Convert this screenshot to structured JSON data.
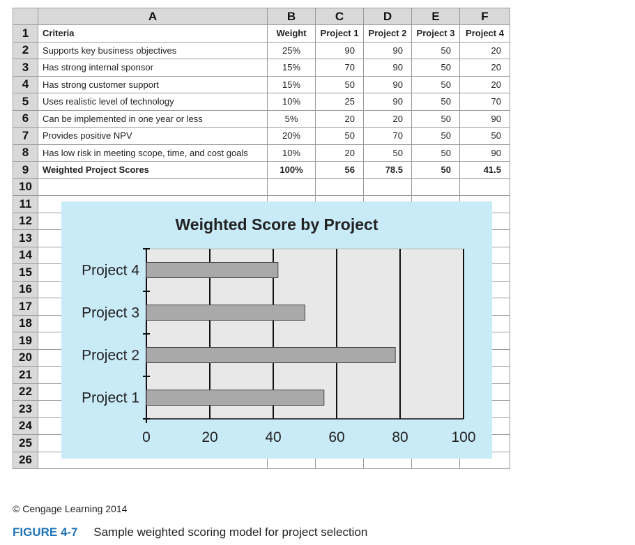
{
  "spreadsheet": {
    "column_headers": [
      "A",
      "B",
      "C",
      "D",
      "E",
      "F"
    ],
    "row_numbers": [
      "1",
      "2",
      "3",
      "4",
      "5",
      "6",
      "7",
      "8",
      "9",
      "10",
      "11",
      "12",
      "13",
      "14",
      "15",
      "16",
      "17",
      "18",
      "19",
      "20",
      "21",
      "22",
      "23",
      "24",
      "25",
      "26"
    ],
    "header_row": [
      "Criteria",
      "Weight",
      "Project 1",
      "Project 2",
      "Project 3",
      "Project 4"
    ],
    "rows": [
      [
        "Supports key business objectives",
        "25%",
        "90",
        "90",
        "50",
        "20"
      ],
      [
        "Has strong internal sponsor",
        "15%",
        "70",
        "90",
        "50",
        "20"
      ],
      [
        "Has strong customer support",
        "15%",
        "50",
        "90",
        "50",
        "20"
      ],
      [
        "Uses realistic level of technology",
        "10%",
        "25",
        "90",
        "50",
        "70"
      ],
      [
        "Can be implemented in one year or less",
        "5%",
        "20",
        "20",
        "50",
        "90"
      ],
      [
        "Provides positive NPV",
        "20%",
        "50",
        "70",
        "50",
        "50"
      ],
      [
        "Has low risk in meeting scope, time, and cost goals",
        "10%",
        "20",
        "50",
        "50",
        "90"
      ]
    ],
    "total_row": [
      "Weighted Project Scores",
      "100%",
      "56",
      "78.5",
      "50",
      "41.5"
    ]
  },
  "chart_data": {
    "type": "bar",
    "orientation": "horizontal",
    "title": "Weighted Score by Project",
    "categories": [
      "Project 1",
      "Project 2",
      "Project 3",
      "Project 4"
    ],
    "values": [
      56,
      78.5,
      50,
      41.5
    ],
    "xlim": [
      0,
      100
    ],
    "xticks": [
      "0",
      "20",
      "40",
      "60",
      "80",
      "100"
    ],
    "grid": true,
    "legend": "none",
    "colors": {
      "background": "#c9eaf7",
      "plot_area": "#e8e8e8",
      "bar": "#a9a9a9"
    }
  },
  "footer": {
    "credit": "© Cengage Learning 2014",
    "figure_label": "FIGURE 4-7",
    "figure_caption": "Sample weighted scoring model for project selection"
  }
}
